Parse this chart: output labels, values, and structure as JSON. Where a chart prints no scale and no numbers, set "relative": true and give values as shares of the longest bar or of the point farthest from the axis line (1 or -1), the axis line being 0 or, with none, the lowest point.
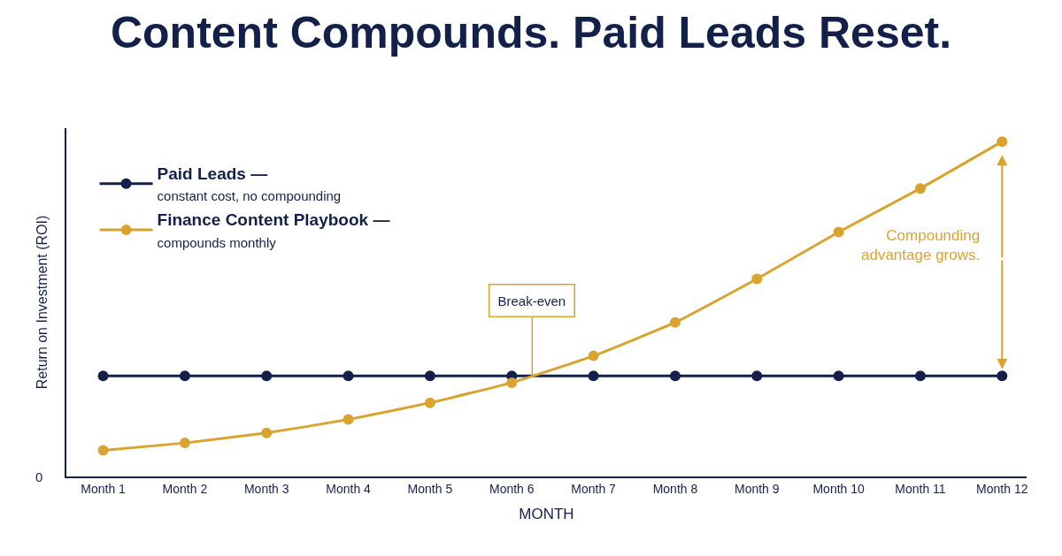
{
  "chart_data": {
    "type": "line",
    "title": "Content Compounds. Paid Leads Reset.",
    "xlabel": "MONTH",
    "ylabel": "Return on Investment (ROI)",
    "categories": [
      "Month 1",
      "Month 2",
      "Month 3",
      "Month 4",
      "Month 5",
      "Month 6",
      "Month 7",
      "Month 8",
      "Month 9",
      "Month 10",
      "Month 11",
      "Month 12"
    ],
    "relative": true,
    "marker": "circle",
    "line_style": "solid",
    "legend": "top left",
    "series": [
      {
        "name": "Paid Leads —\nconstant cost, no compounding",
        "color": "#13204a",
        "values": [
          0.3,
          0.3,
          0.3,
          0.3,
          0.3,
          0.3,
          0.3,
          0.3,
          0.3,
          0.3,
          0.3,
          0.3
        ]
      },
      {
        "name": "Finance Content Playbook —\ncompounds monthly",
        "color": "#d9a330",
        "values": [
          0.078,
          0.1,
          0.13,
          0.17,
          0.22,
          0.28,
          0.36,
          0.46,
          0.59,
          0.73,
          0.86,
          1
        ]
      }
    ],
    "annotations": [
      "0",
      {
        "text": "Break-even",
        "y": 0.3
      },
      "Compounding\nadvantage grows."
    ]
  }
}
